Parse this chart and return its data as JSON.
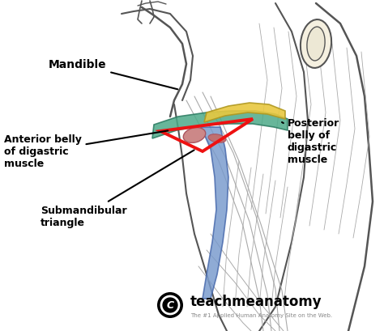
{
  "bg_color": "#ffffff",
  "labels": {
    "mandible": "Mandible",
    "anterior_belly": "Anterior belly\nof digastric\nmuscle",
    "posterior_belly": "Posterior\nbelly of\ndigastric\nmuscle",
    "submandibular": "Submandibular\ntriangle"
  },
  "watermark_line1": "teachmeanatomy",
  "watermark_line2": "The #1 Applied Human Anatomy Site on the Web.",
  "colors": {
    "red_triangle": "#ee1111",
    "teal_muscle": "#4daa88",
    "yellow_muscle": "#e8c840",
    "blue_muscle": "#7799cc",
    "pink_node": "#cc8888",
    "skin_light": "#f5f0e8",
    "sketch_line": "#555555",
    "sketch_light": "#aaaaaa"
  }
}
